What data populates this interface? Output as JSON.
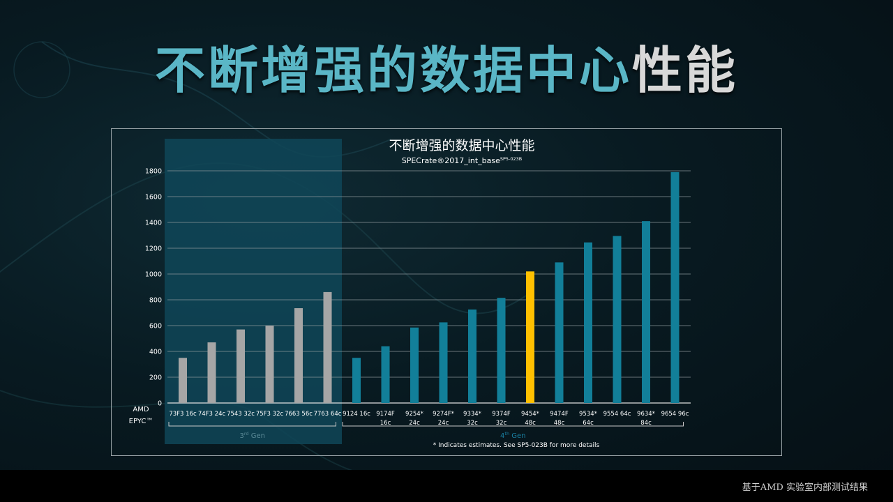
{
  "slide": {
    "title_main": "不断增强的数据中心",
    "title_accent": "性能",
    "footer": "基于AMD 实验室内部测试结果"
  },
  "colors": {
    "gen3_bar": "#a6a6a6",
    "gen4_bar": "#127f99",
    "highlight_bar": "#ffc000",
    "gen3_panel": "#0f4658",
    "title_teal": "#5ab6c6",
    "gen4_label": "#1a7fa0"
  },
  "chart_data": {
    "type": "bar",
    "title": "不断增强的数据中心性能",
    "subtitle": "SPECrate®2017_int_base",
    "subtitle_superscript": "SP5-023B",
    "ylim": [
      0,
      1800
    ],
    "yticks": [
      0,
      200,
      400,
      600,
      800,
      1000,
      1200,
      1400,
      1600,
      1800
    ],
    "grid": true,
    "row_header": [
      "AMD",
      "EPYC™"
    ],
    "categories": [
      [
        "73F3 16c"
      ],
      [
        "74F3 24c"
      ],
      [
        "7543 32c"
      ],
      [
        "75F3 32c"
      ],
      [
        "7663 56c"
      ],
      [
        "7763 64c"
      ],
      [
        "9124 16c"
      ],
      [
        "9174F",
        "16c"
      ],
      [
        "9254*",
        "24c"
      ],
      [
        "9274F*",
        "24c"
      ],
      [
        "9334*",
        "32c"
      ],
      [
        "9374F",
        "32c"
      ],
      [
        "9454*",
        "48c"
      ],
      [
        "9474F",
        "48c"
      ],
      [
        "9534*",
        "64c"
      ],
      [
        "9554 64c"
      ],
      [
        "9634*",
        "84c"
      ],
      [
        "9654 96c"
      ]
    ],
    "values": [
      350,
      470,
      570,
      600,
      735,
      860,
      350,
      440,
      585,
      625,
      725,
      815,
      1020,
      1090,
      1245,
      1295,
      1410,
      1790
    ],
    "generation": [
      "3rd",
      "3rd",
      "3rd",
      "3rd",
      "3rd",
      "3rd",
      "4th",
      "4th",
      "4th",
      "4th",
      "4th",
      "4th",
      "4th",
      "4th",
      "4th",
      "4th",
      "4th",
      "4th"
    ],
    "highlight_index": 12,
    "groups": [
      {
        "label": "3",
        "sup": "rd",
        "suffix": " Gen",
        "from": 0,
        "to": 5
      },
      {
        "label": "4",
        "sup": "th",
        "suffix": " Gen",
        "from": 6,
        "to": 17
      }
    ],
    "footnote": "* Indicates estimates. See SP5-023B for more details"
  }
}
